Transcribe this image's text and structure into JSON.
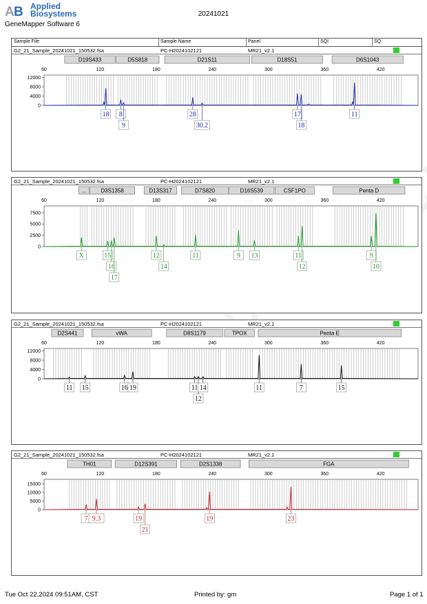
{
  "header": {
    "brand_line1": "Applied",
    "brand_line2": "Biosystems",
    "software": "GeneMapper Software 6",
    "date": "20241021"
  },
  "columns": [
    "Sample File",
    "Sample Name",
    "Panel",
    "SQI",
    "SQ"
  ],
  "info": {
    "file": "G2_21_Sample_20241021_150532.fsa",
    "name": "PC-H2024102121",
    "panel": "MR21_v2.1"
  },
  "footer": {
    "timestamp": "Tue Oct 22,2024 09:51AM, CST",
    "printed_by": "Printed by: gm",
    "page": "Page 1 of 1"
  },
  "watermark": "www.pro.ce.cn",
  "chart_data": [
    {
      "type": "line",
      "color": "#1a2aa8",
      "xlim": [
        60,
        460
      ],
      "x_ticks": [
        60,
        120,
        180,
        240,
        300,
        360,
        420
      ],
      "ylim": [
        0,
        13000
      ],
      "y_ticks": [
        0,
        4000,
        8000,
        12000
      ],
      "markers": [
        {
          "name": "D19S433",
          "range": [
            82,
            136
          ]
        },
        {
          "name": "D5S818",
          "range": [
            137,
            183
          ]
        },
        {
          "name": "D21S11",
          "range": [
            189,
            280
          ]
        },
        {
          "name": "D18S51",
          "range": [
            282,
            358
          ]
        },
        {
          "name": "D6S1043",
          "range": [
            368,
            444
          ]
        }
      ],
      "peaks": [
        {
          "x": 124,
          "y": 1400
        },
        {
          "x": 126,
          "y": 7300
        },
        {
          "x": 142,
          "y": 2400
        },
        {
          "x": 145,
          "y": 1100
        },
        {
          "x": 219,
          "y": 3400
        },
        {
          "x": 229,
          "y": 1000
        },
        {
          "x": 331,
          "y": 5000
        },
        {
          "x": 335,
          "y": 4700
        },
        {
          "x": 343,
          "y": 600
        },
        {
          "x": 390,
          "y": 1500
        },
        {
          "x": 392,
          "y": 9700
        }
      ],
      "alleles": [
        {
          "label": "18",
          "x": 126,
          "row": 0
        },
        {
          "label": "8",
          "x": 142,
          "row": 0
        },
        {
          "label": "9",
          "x": 145,
          "row": 1
        },
        {
          "label": "28",
          "x": 219,
          "row": 0
        },
        {
          "label": "30.2",
          "x": 229,
          "row": 1
        },
        {
          "label": "17",
          "x": 331,
          "row": 0
        },
        {
          "label": "18",
          "x": 335,
          "row": 1
        },
        {
          "label": "11",
          "x": 392,
          "row": 0
        }
      ]
    },
    {
      "type": "line",
      "color": "#1e9a2a",
      "xlim": [
        60,
        460
      ],
      "x_ticks": [
        60,
        120,
        180,
        240,
        300,
        360,
        420
      ],
      "ylim": [
        0,
        9000
      ],
      "y_ticks": [
        0,
        2500,
        5000,
        7500
      ],
      "markers": [
        {
          "name": "...",
          "range": [
            97,
            108
          ]
        },
        {
          "name": "D3S1358",
          "range": [
            109,
            157
          ]
        },
        {
          "name": "D13S317",
          "range": [
            167,
            202
          ]
        },
        {
          "name": "D7S820",
          "range": [
            207,
            257
          ]
        },
        {
          "name": "D16S539",
          "range": [
            258,
            306
          ]
        },
        {
          "name": "CSF1PO",
          "range": [
            307,
            349
          ]
        },
        {
          "name": "Penta D",
          "range": [
            369,
            446
          ]
        }
      ],
      "peaks": [
        {
          "x": 100,
          "y": 2000
        },
        {
          "x": 128,
          "y": 1200
        },
        {
          "x": 132,
          "y": 1300
        },
        {
          "x": 135,
          "y": 2000
        },
        {
          "x": 180,
          "y": 2300
        },
        {
          "x": 188,
          "y": 400
        },
        {
          "x": 222,
          "y": 2600
        },
        {
          "x": 268,
          "y": 3500
        },
        {
          "x": 285,
          "y": 1300
        },
        {
          "x": 332,
          "y": 2400
        },
        {
          "x": 336,
          "y": 4500
        },
        {
          "x": 410,
          "y": 2300
        },
        {
          "x": 415,
          "y": 7300
        }
      ],
      "alleles": [
        {
          "label": "X",
          "x": 100,
          "row": 0
        },
        {
          "label": "15",
          "x": 128,
          "row": 0
        },
        {
          "label": "16",
          "x": 132,
          "row": 1
        },
        {
          "label": "17",
          "x": 135,
          "row": 2
        },
        {
          "label": "12",
          "x": 180,
          "row": 0
        },
        {
          "label": "14",
          "x": 188,
          "row": 1
        },
        {
          "label": "11",
          "x": 222,
          "row": 0
        },
        {
          "label": "9",
          "x": 268,
          "row": 0
        },
        {
          "label": "13",
          "x": 285,
          "row": 0
        },
        {
          "label": "11",
          "x": 332,
          "row": 0
        },
        {
          "label": "12",
          "x": 336,
          "row": 1
        },
        {
          "label": "9",
          "x": 410,
          "row": 0
        },
        {
          "label": "10",
          "x": 415,
          "row": 1
        }
      ]
    },
    {
      "type": "line",
      "color": "#111111",
      "xlim": [
        60,
        460
      ],
      "x_ticks": [
        60,
        120,
        180,
        240,
        300,
        360,
        420
      ],
      "ylim": [
        0,
        13000
      ],
      "y_ticks": [
        0,
        4000,
        8000,
        12000
      ],
      "markers": [
        {
          "name": "D2S441",
          "range": [
            68,
            102
          ]
        },
        {
          "name": "vWA",
          "range": [
            111,
            175
          ]
        },
        {
          "name": "D8S1179",
          "range": [
            191,
            251
          ]
        },
        {
          "name": "TPOX",
          "range": [
            253,
            285
          ]
        },
        {
          "name": "Penta E",
          "range": [
            289,
            442
          ]
        }
      ],
      "peaks": [
        {
          "x": 87,
          "y": 700
        },
        {
          "x": 104,
          "y": 1300
        },
        {
          "x": 146,
          "y": 1400
        },
        {
          "x": 155,
          "y": 3000
        },
        {
          "x": 221,
          "y": 900
        },
        {
          "x": 225,
          "y": 900
        },
        {
          "x": 230,
          "y": 900
        },
        {
          "x": 290,
          "y": 10100
        },
        {
          "x": 335,
          "y": 6200
        },
        {
          "x": 378,
          "y": 5700
        }
      ],
      "alleles": [
        {
          "label": "11",
          "x": 87,
          "row": 0
        },
        {
          "label": "15",
          "x": 104,
          "row": 0
        },
        {
          "label": "16",
          "x": 146,
          "row": 0
        },
        {
          "label": "19",
          "x": 155,
          "row": 0
        },
        {
          "label": "11",
          "x": 221,
          "row": 0
        },
        {
          "label": "12",
          "x": 225,
          "row": 1
        },
        {
          "label": "14",
          "x": 230,
          "row": 0
        },
        {
          "label": "11",
          "x": 290,
          "row": 0
        },
        {
          "label": "7",
          "x": 335,
          "row": 0
        },
        {
          "label": "15",
          "x": 378,
          "row": 0
        }
      ]
    },
    {
      "type": "line",
      "color": "#c0262a",
      "xlim": [
        60,
        460
      ],
      "x_ticks": [
        60,
        120,
        180,
        240,
        300,
        360,
        420
      ],
      "ylim": [
        0,
        17500
      ],
      "y_ticks": [
        0,
        5000,
        10000,
        15000
      ],
      "markers": [
        {
          "name": "TH01",
          "range": [
            85,
            132
          ]
        },
        {
          "name": "D12S391",
          "range": [
            136,
            202
          ]
        },
        {
          "name": "D2S1338",
          "range": [
            206,
            270
          ]
        },
        {
          "name": "FGA",
          "range": [
            279,
            450
          ]
        }
      ],
      "peaks": [
        {
          "x": 105,
          "y": 3000
        },
        {
          "x": 116,
          "y": 6200
        },
        {
          "x": 161,
          "y": 1600
        },
        {
          "x": 168,
          "y": 3300
        },
        {
          "x": 234,
          "y": 1200
        },
        {
          "x": 237,
          "y": 10300
        },
        {
          "x": 320,
          "y": 1500
        },
        {
          "x": 324,
          "y": 13000
        }
      ],
      "alleles": [
        {
          "label": "7",
          "x": 105,
          "row": 0
        },
        {
          "label": "9.3",
          "x": 116,
          "row": 0
        },
        {
          "label": "19",
          "x": 161,
          "row": 0
        },
        {
          "label": "21",
          "x": 168,
          "row": 1
        },
        {
          "label": "19",
          "x": 237,
          "row": 0
        },
        {
          "label": "23",
          "x": 324,
          "row": 0
        }
      ]
    }
  ]
}
